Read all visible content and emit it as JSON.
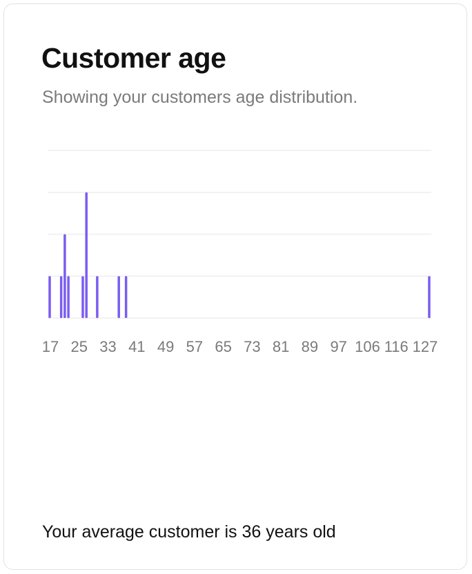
{
  "card": {
    "title": "Customer age",
    "subtitle": "Showing your customers age distribution.",
    "footer": "Your average customer is 36 years old"
  },
  "colors": {
    "bar": "#7b5cf0",
    "grid": "#eeeeee",
    "tick_label": "#7a7a7a"
  },
  "chart_data": {
    "type": "bar",
    "title": "",
    "xlabel": "",
    "ylabel": "",
    "grid": true,
    "ylim": [
      0,
      4
    ],
    "x_ticks": [
      17,
      25,
      33,
      41,
      49,
      57,
      65,
      73,
      81,
      89,
      97,
      106,
      116,
      127
    ],
    "x_range": [
      17,
      127
    ],
    "bars": [
      {
        "age": 17,
        "count": 1
      },
      {
        "age": 20,
        "count": 1
      },
      {
        "age": 21,
        "count": 2
      },
      {
        "age": 22,
        "count": 1
      },
      {
        "age": 26,
        "count": 1
      },
      {
        "age": 27,
        "count": 3
      },
      {
        "age": 30,
        "count": 1
      },
      {
        "age": 36,
        "count": 1
      },
      {
        "age": 38,
        "count": 1
      },
      {
        "age": 127,
        "count": 1
      }
    ]
  }
}
